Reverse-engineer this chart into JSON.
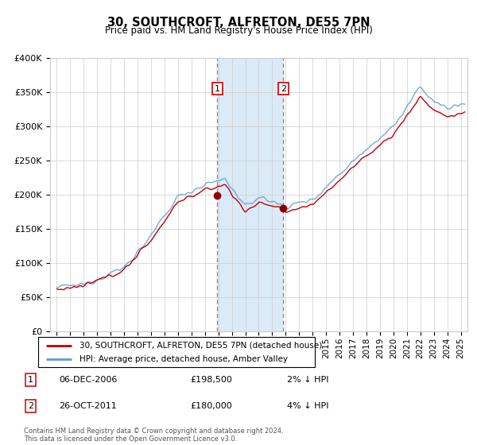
{
  "title": "30, SOUTHCROFT, ALFRETON, DE55 7PN",
  "subtitle": "Price paid vs. HM Land Registry's House Price Index (HPI)",
  "legend_line1": "30, SOUTHCROFT, ALFRETON, DE55 7PN (detached house)",
  "legend_line2": "HPI: Average price, detached house, Amber Valley",
  "footer": "Contains HM Land Registry data © Crown copyright and database right 2024.\nThis data is licensed under the Open Government Licence v3.0.",
  "annotation1_label": "1",
  "annotation1_date": "06-DEC-2006",
  "annotation1_price": "£198,500",
  "annotation1_pct": "2% ↓ HPI",
  "annotation2_label": "2",
  "annotation2_date": "26-OCT-2011",
  "annotation2_price": "£180,000",
  "annotation2_pct": "4% ↓ HPI",
  "sale1_x": 2006.92,
  "sale1_y": 198500,
  "sale2_x": 2011.82,
  "sale2_y": 180000,
  "ylim": [
    0,
    400000
  ],
  "xlim": [
    1994.5,
    2025.5
  ],
  "hpi_color": "#5b9bd5",
  "price_color": "#c00000",
  "shade_color": "#daeaf7",
  "grid_color": "#cccccc",
  "background_color": "#ffffff",
  "annotation_box_color": "#cc0000",
  "yticks": [
    0,
    50000,
    100000,
    150000,
    200000,
    250000,
    300000,
    350000,
    400000
  ],
  "ylabels": [
    "£0",
    "£50K",
    "£100K",
    "£150K",
    "£200K",
    "£250K",
    "£300K",
    "£350K",
    "£400K"
  ]
}
